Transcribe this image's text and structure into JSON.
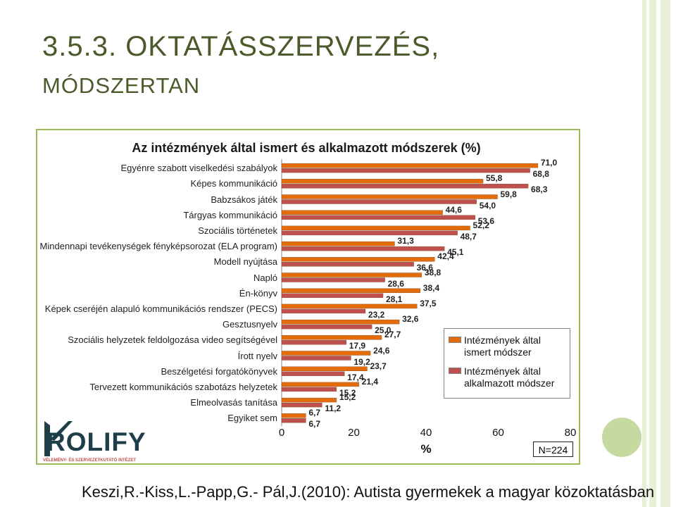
{
  "slide": {
    "title_line1": "3.5.3. OKTATÁSSZERVEZÉS,",
    "title_line2": "MÓDSZERTAN",
    "citation": "Keszi,R.-Kiss,L.-Papp,G.- Pál,J.(2010): Autista gyermekek a magyar közoktatásban",
    "n_box": "N=224",
    "logo_text": "ROLIFY",
    "logo_tagline": "VÉLEMÉNY- ÉS SZERVEZETKUTATÓ INTÉZET",
    "colors": {
      "known": "#e46c0a",
      "applied": "#c0504d",
      "accent": "#9bbb59",
      "title": "#4a5a2a"
    }
  },
  "chart_data": {
    "type": "bar",
    "orientation": "horizontal",
    "title": "Az intézmények által ismert és alkalmazott módszerek (%)",
    "xlabel": "%",
    "ylabel": "",
    "xlim": [
      0,
      80
    ],
    "xticks": [
      "0",
      "20",
      "40",
      "60",
      "80"
    ],
    "grid": false,
    "legend_position": "right",
    "categories": [
      "Egyénre szabott viselkedési szabályok",
      "Képes kommunikáció",
      "Babzsákos játék",
      "Tárgyas kommunikáció",
      "Szociális történetek",
      "Mindennapi tevékenységek fényképsorozat (ELA program)",
      "Modell nyújtása",
      "Napló",
      "Én-könyv",
      "Képek cseréjén alapuló kommunikációs rendszer (PECS)",
      "Gesztusnyelv",
      "Szociális helyzetek feldolgozása video segítségével",
      "Írott nyelv",
      "Beszélgetési forgatókönyvek",
      "Tervezett kommunikációs szabotázs helyzetek",
      "Elmeolvasás tanítása",
      "Egyiket sem"
    ],
    "series": [
      {
        "name": "Intézmények által ismert módszer",
        "color": "#e46c0a",
        "values": [
          71.0,
          55.8,
          59.8,
          44.6,
          52.2,
          31.3,
          42.4,
          38.8,
          38.4,
          37.5,
          32.6,
          27.7,
          24.6,
          23.7,
          21.4,
          15.2,
          6.7
        ],
        "labels": [
          "71,0",
          "55,8",
          "59,8",
          "44,6",
          "52,2",
          "31,3",
          "42,4",
          "38,8",
          "38,4",
          "37,5",
          "32,6",
          "27,7",
          "24,6",
          "23,7",
          "21,4",
          "15,2",
          "6,7"
        ]
      },
      {
        "name": "Intézmények által alkalmazott módszer",
        "color": "#c0504d",
        "values": [
          68.8,
          68.3,
          54.0,
          53.6,
          48.7,
          45.1,
          36.6,
          28.6,
          28.1,
          23.2,
          25.0,
          17.9,
          19.2,
          17.4,
          15.2,
          11.2,
          6.7
        ],
        "labels": [
          "68,8",
          "68,3",
          "54,0",
          "53,6",
          "48,7",
          "45,1",
          "36,6",
          "28,6",
          "28,1",
          "23,2",
          "25,0",
          "17,9",
          "19,2",
          "17,4",
          "15,2",
          "11,2",
          "6,7"
        ]
      }
    ]
  }
}
